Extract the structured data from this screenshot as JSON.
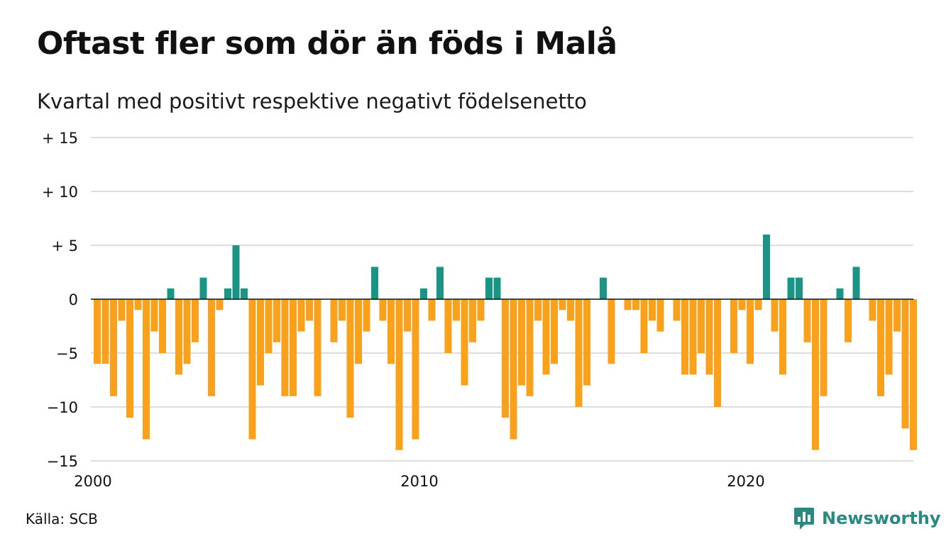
{
  "header": {
    "title": "Oftast fler som dör än föds i Malå",
    "subtitle": "Kvartal med positivt respektive negativt födelsenetto"
  },
  "footer": {
    "source": "Källa: SCB",
    "brand": "Newsworthy",
    "brand_icon": "bar-chart-speech-icon"
  },
  "colors": {
    "positive": "#1a9485",
    "negative": "#f9a11b",
    "grid": "#dddddd",
    "zero_line": "#111111",
    "brand": "#2a8a80"
  },
  "chart_data": {
    "type": "bar",
    "x_start": "2000 Q1",
    "x_step": "quarter",
    "xticks": [
      "2000",
      "2010",
      "2020"
    ],
    "yticks": [
      {
        "value": 15,
        "label": "+ 15"
      },
      {
        "value": 10,
        "label": "+ 10"
      },
      {
        "value": 5,
        "label": "+  5"
      },
      {
        "value": 0,
        "label": "0"
      },
      {
        "value": -5,
        "label": "−5"
      },
      {
        "value": -10,
        "label": "−10"
      },
      {
        "value": -15,
        "label": "−15"
      }
    ],
    "ylim": [
      -15,
      15
    ],
    "grid": true,
    "values": [
      -6,
      -6,
      -9,
      -2,
      -11,
      -1,
      -13,
      -3,
      -5,
      1,
      -7,
      -6,
      -4,
      2,
      -9,
      -1,
      1,
      5,
      1,
      -13,
      -8,
      -5,
      -4,
      -9,
      -9,
      -3,
      -2,
      -9,
      0,
      -4,
      -2,
      -11,
      -6,
      -3,
      3,
      -2,
      -6,
      -14,
      -3,
      -13,
      1,
      -2,
      3,
      -5,
      -2,
      -8,
      -4,
      -2,
      2,
      2,
      -11,
      -13,
      -8,
      -9,
      -2,
      -7,
      -6,
      -1,
      -2,
      -10,
      -8,
      0,
      2,
      -6,
      0,
      -1,
      -1,
      -5,
      -2,
      -3,
      0,
      -2,
      -7,
      -7,
      -5,
      -7,
      -10,
      0,
      -5,
      -1,
      -6,
      -1,
      6,
      -3,
      -7,
      2,
      2,
      -4,
      -14,
      -9,
      0,
      1,
      -4,
      3,
      0,
      -2,
      -9,
      -7,
      -3,
      -12,
      -14
    ]
  }
}
